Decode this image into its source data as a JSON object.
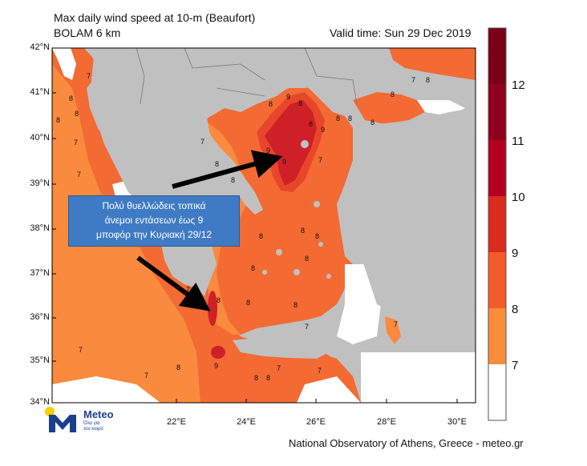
{
  "header": {
    "title": "Max daily wind speed at 10-m (Beaufort)",
    "model": "BOLAM 6 km",
    "valid_time": "Valid time: Sun 29 Dec 2019"
  },
  "footer": {
    "credit": "National Observatory of Athens, Greece - meteo.gr"
  },
  "callout": {
    "lines": [
      "Πολύ θυελλώδεις τοπικά",
      "άνεμοι εντάσεων έως 9",
      "μποφόρ την Κυριακή 29/12"
    ]
  },
  "logo": {
    "name": "Meteo",
    "tagline1": "Όλα για",
    "tagline2": "τον καιρό"
  },
  "axes": {
    "lat_labels": [
      "42°N",
      "41°N",
      "40°N",
      "39°N",
      "38°N",
      "37°N",
      "36°N",
      "35°N",
      "34°N"
    ],
    "lon_labels": [
      "22°E",
      "24°E",
      "26°E",
      "28°E",
      "30°E"
    ]
  },
  "colorbar": {
    "labels": [
      "12",
      "11",
      "10",
      "9",
      "8",
      "7"
    ],
    "colors": [
      "#7a0019",
      "#8f001f",
      "#b4001f",
      "#d92b1e",
      "#f45a2c",
      "#fb8c3a",
      "#ffffff"
    ]
  },
  "contour_labels": [
    "7",
    "8",
    "9"
  ],
  "colors": {
    "land": "#c0c0c0",
    "sea_white": "#ffffff",
    "bf7": "#fa8a3e",
    "bf8": "#f36a33",
    "bf9": "#e8462b",
    "bf10": "#cf2027",
    "callout_bg": "#3f7bc4"
  }
}
